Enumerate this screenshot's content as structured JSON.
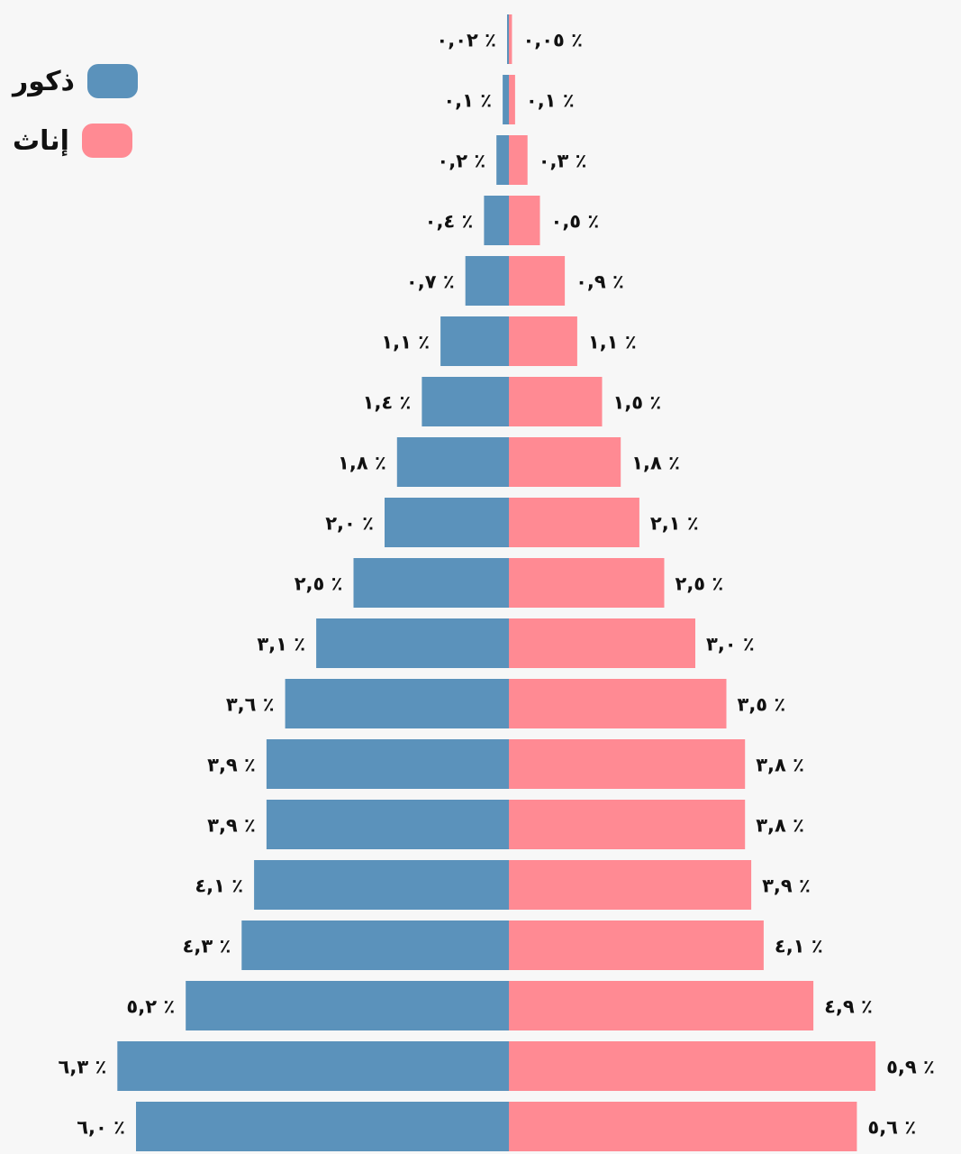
{
  "colors": {
    "males": "#5b92bb",
    "females": "#ff8a93"
  },
  "legend": [
    {
      "key": "males",
      "label": "ذكور"
    },
    {
      "key": "females",
      "label": "إناث"
    }
  ],
  "chart_data": {
    "type": "bar",
    "orientation": "horizontal-diverging",
    "title": "",
    "grid": false,
    "legend_position": "top-left",
    "unit": "%",
    "series": [
      {
        "name": "ذكور",
        "side": "left",
        "values": [
          0.02,
          0.1,
          0.2,
          0.4,
          0.7,
          1.1,
          1.4,
          1.8,
          2.0,
          2.5,
          3.1,
          3.6,
          3.9,
          3.9,
          4.1,
          4.3,
          5.2,
          6.3,
          6.0
        ],
        "labels": [
          "٠,٠٢ ٪",
          "٠,١ ٪",
          "٠,٢ ٪",
          "٠,٤ ٪",
          "٠,٧ ٪",
          "١,١ ٪",
          "١,٤ ٪",
          "١,٨ ٪",
          "٢,٠ ٪",
          "٢,٥ ٪",
          "٣,١ ٪",
          "٣,٦ ٪",
          "٣,٩ ٪",
          "٣,٩ ٪",
          "٤,١ ٪",
          "٤,٣ ٪",
          "٥,٢ ٪",
          "٦,٣ ٪",
          "٦,٠ ٪"
        ]
      },
      {
        "name": "إناث",
        "side": "right",
        "values": [
          0.05,
          0.1,
          0.3,
          0.5,
          0.9,
          1.1,
          1.5,
          1.8,
          2.1,
          2.5,
          3.0,
          3.5,
          3.8,
          3.8,
          3.9,
          4.1,
          4.9,
          5.9,
          5.6
        ],
        "labels": [
          "٠,٠٥ ٪",
          "٠,١ ٪",
          "٠,٣ ٪",
          "٠,٥ ٪",
          "٠,٩ ٪",
          "١,١ ٪",
          "١,٥ ٪",
          "١,٨ ٪",
          "٢,١ ٪",
          "٢,٥ ٪",
          "٣,٠ ٪",
          "٣,٥ ٪",
          "٣,٨ ٪",
          "٣,٨ ٪",
          "٣,٩ ٪",
          "٤,١ ٪",
          "٤,٩ ٪",
          "٥,٩ ٪",
          "٥,٦ ٪"
        ]
      }
    ]
  }
}
